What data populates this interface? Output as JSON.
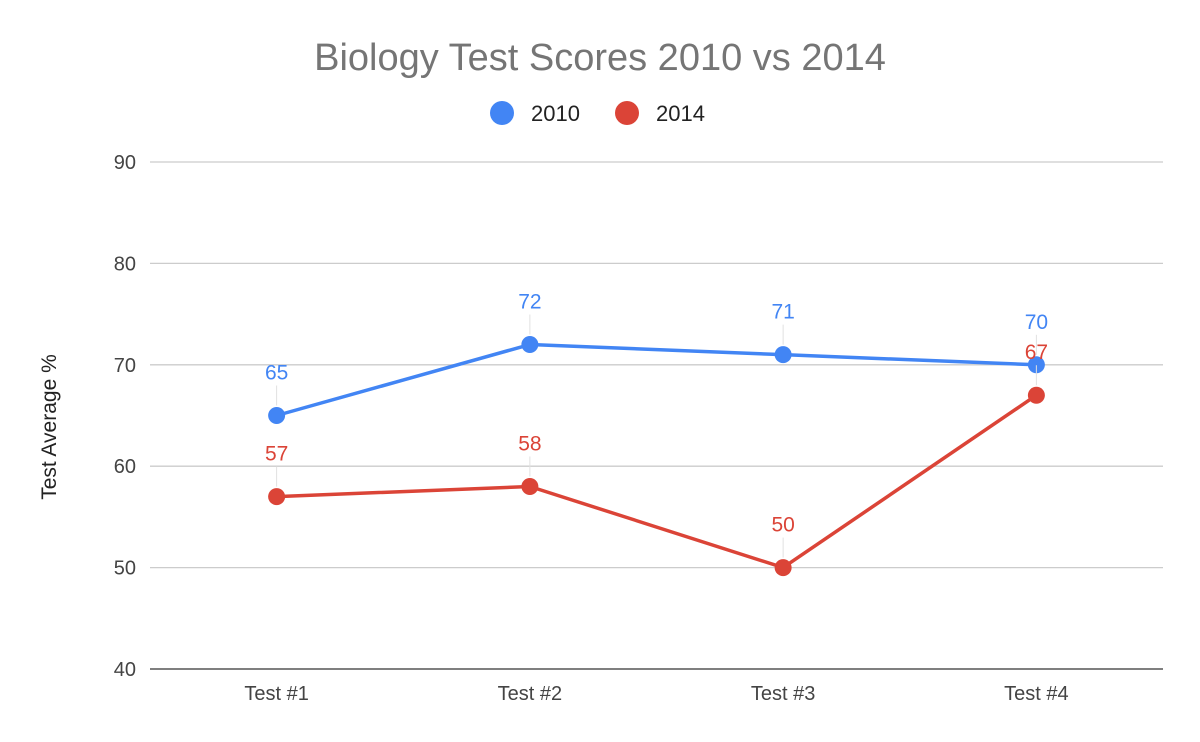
{
  "chart_data": {
    "type": "line",
    "title": "Biology Test Scores 2010 vs 2014",
    "ylabel": "Test Average %",
    "xlabel": "",
    "categories": [
      "Test #1",
      "Test #2",
      "Test #3",
      "Test #4"
    ],
    "ylim": [
      40,
      90
    ],
    "yticks": [
      "40",
      "50",
      "60",
      "70",
      "80",
      "90"
    ],
    "grid": true,
    "legend_position": "top-center",
    "series": [
      {
        "name": "2010",
        "color": "#4285f4",
        "values": [
          65,
          72,
          71,
          70
        ],
        "labels": [
          "65",
          "72",
          "71",
          "70"
        ]
      },
      {
        "name": "2014",
        "color": "#db4437",
        "values": [
          57,
          58,
          50,
          67
        ],
        "labels": [
          "57",
          "58",
          "50",
          "67"
        ]
      }
    ]
  }
}
